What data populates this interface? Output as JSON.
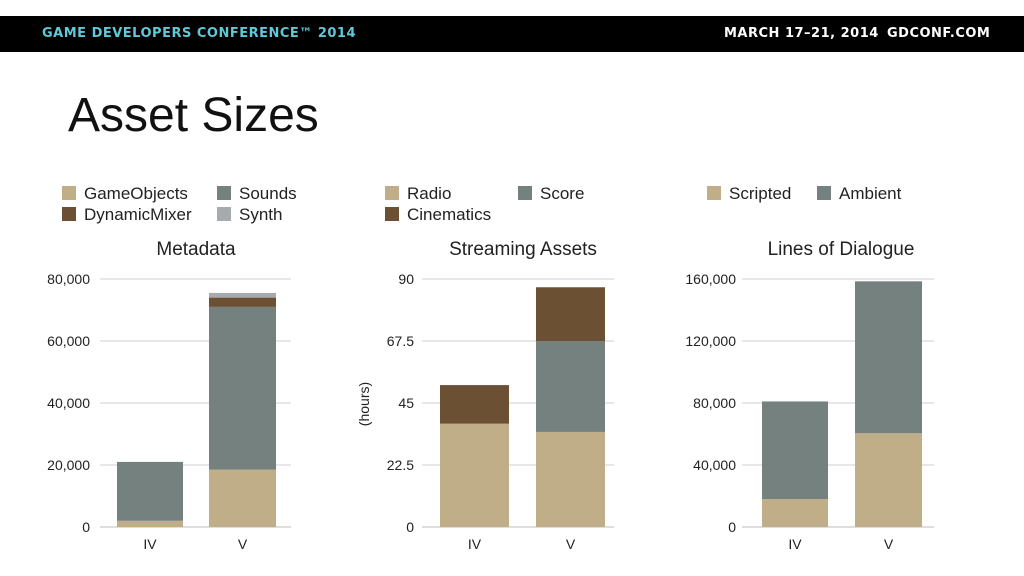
{
  "header": {
    "conference": "GAME DEVELOPERS CONFERENCE™ 2014",
    "dates": "MARCH 17–21, 2014",
    "site": "GDCONF.COM"
  },
  "slide": {
    "title": "Asset Sizes"
  },
  "colors": {
    "tan": "#bfae87",
    "brown": "#6b5034",
    "slate": "#74817f",
    "light_gray": "#a6acae",
    "brand_cyan": "#5fc9d8"
  },
  "chart_data": [
    {
      "type": "bar",
      "stacked": true,
      "title": "Metadata",
      "ylabel": "",
      "categories": [
        "IV",
        "V"
      ],
      "ylim": [
        0,
        80000
      ],
      "yticks": [
        0,
        20000,
        40000,
        60000,
        80000
      ],
      "ytick_labels": [
        "0",
        "20,000",
        "40,000",
        "60,000",
        "80,000"
      ],
      "grid": true,
      "series": [
        {
          "name": "GameObjects",
          "color": "#bfae87",
          "values": [
            2000,
            18500
          ]
        },
        {
          "name": "Sounds",
          "color": "#74817f",
          "values": [
            19000,
            52500
          ]
        },
        {
          "name": "DynamicMixer",
          "color": "#6b5034",
          "values": [
            0,
            3000
          ]
        },
        {
          "name": "Synth",
          "color": "#a6acae",
          "values": [
            0,
            1500
          ]
        }
      ],
      "legend": [
        {
          "name": "GameObjects",
          "color": "#bfae87"
        },
        {
          "name": "Sounds",
          "color": "#74817f"
        },
        {
          "name": "DynamicMixer",
          "color": "#6b5034"
        },
        {
          "name": "Synth",
          "color": "#a6acae"
        }
      ],
      "legend_position": "top"
    },
    {
      "type": "bar",
      "stacked": true,
      "title": "Streaming Assets",
      "ylabel": "(hours)",
      "categories": [
        "IV",
        "V"
      ],
      "ylim": [
        0,
        90
      ],
      "yticks": [
        0,
        22.5,
        45,
        67.5,
        90
      ],
      "ytick_labels": [
        "0",
        "22.5",
        "45",
        "67.5",
        "90"
      ],
      "grid": true,
      "series": [
        {
          "name": "Radio",
          "color": "#bfae87",
          "values": [
            37.5,
            34.5
          ]
        },
        {
          "name": "Score",
          "color": "#74817f",
          "values": [
            0,
            33
          ]
        },
        {
          "name": "Cinematics",
          "color": "#6b5034",
          "values": [
            14,
            19.5
          ]
        }
      ],
      "legend": [
        {
          "name": "Radio",
          "color": "#bfae87"
        },
        {
          "name": "Score",
          "color": "#74817f"
        },
        {
          "name": "Cinematics",
          "color": "#6b5034"
        }
      ],
      "legend_position": "top"
    },
    {
      "type": "bar",
      "stacked": true,
      "title": "Lines of Dialogue",
      "ylabel": "",
      "categories": [
        "IV",
        "V"
      ],
      "ylim": [
        0,
        160000
      ],
      "yticks": [
        0,
        40000,
        80000,
        120000,
        160000
      ],
      "ytick_labels": [
        "0",
        "40,000",
        "80,000",
        "120,000",
        "160,000"
      ],
      "grid": true,
      "series": [
        {
          "name": "Scripted",
          "color": "#bfae87",
          "values": [
            18000,
            60500
          ]
        },
        {
          "name": "Ambient",
          "color": "#74817f",
          "values": [
            63000,
            98000
          ]
        }
      ],
      "legend": [
        {
          "name": "Scripted",
          "color": "#bfae87"
        },
        {
          "name": "Ambient",
          "color": "#74817f"
        }
      ],
      "legend_position": "top"
    }
  ]
}
